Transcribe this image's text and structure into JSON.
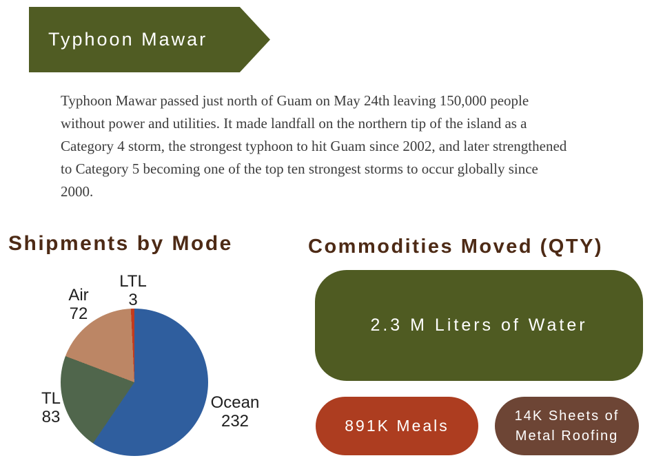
{
  "banner": {
    "title": "Typhoon Mawar"
  },
  "intro": {
    "text": "Typhoon Mawar passed just north of Guam on May 24th leaving 150,000 people without power and utilities. It made landfall on the northern tip of the island as a Category 4 storm, the strongest typhoon to hit Guam since 2002, and later strengthened to Category 5 becoming one of the top ten strongest storms to occur globally since 2000."
  },
  "shipments": {
    "heading": "Shipments by Mode"
  },
  "commodities": {
    "heading": "Commodities Moved (QTY)",
    "cards": [
      {
        "label": "2.3 M Liters of Water",
        "color": "#4F5B22"
      },
      {
        "label": "891K Meals",
        "color": "#AD3D20"
      },
      {
        "label": "14K Sheets of Metal Roofing",
        "color": "#6D4535"
      }
    ]
  },
  "chart_data": {
    "type": "pie",
    "title": "Shipments by Mode",
    "labels": [
      "Ocean",
      "TL",
      "Air",
      "LTL"
    ],
    "values": [
      232,
      83,
      72,
      3
    ],
    "colors": [
      "#2F5E9E",
      "#50664C",
      "#BC8665",
      "#C23B1D"
    ],
    "total": 390,
    "start_angle_deg": 0,
    "direction": "clockwise",
    "legend_position": "outside-slice-labels"
  },
  "colors": {
    "banner_olive": "#505C23",
    "heading_brown": "#4D2A15",
    "body_text": "#3C3C3C",
    "pie_label_text": "#1E1E1E",
    "card_text": "#FFFFFF"
  }
}
